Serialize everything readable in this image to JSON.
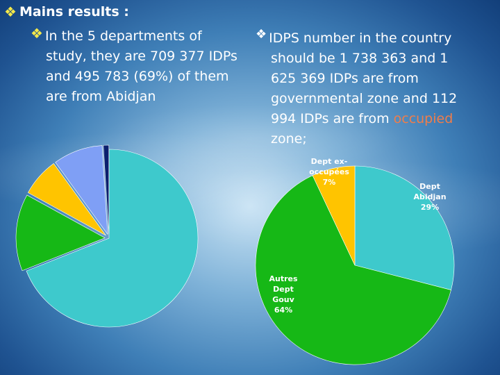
{
  "heading": "Mains results :",
  "left_text": {
    "line1": "In the 5 departments of",
    "line2": "study, they are 709 377 IDPs",
    "line3": "and  495 783 (69%) of them",
    "line4": "are from Abidjan"
  },
  "right_text": {
    "line1": "IDPS number in the country",
    "line2": "should be 1 738 363 and 1",
    "line3": "625 369 IDPs are from",
    "line4": "governmental zone and  112",
    "line5_a": "994 IDPs are from ",
    "line5_b": "occupied",
    "line6": "zone;"
  },
  "chart_data": [
    {
      "type": "pie",
      "labels_visible": false,
      "values": [
        69,
        14,
        7,
        9,
        1
      ],
      "colors": [
        "#3ec9cc",
        "#16b816",
        "#ffc400",
        "#7f9ff5",
        "#0b1f6e"
      ]
    },
    {
      "type": "pie",
      "slices": [
        {
          "label_lines": [
            "Dept",
            "Abidjan",
            "29%"
          ],
          "value": 29,
          "color": "#3ec9cc",
          "label_color": "#ffffff"
        },
        {
          "label_lines": [
            "Autres",
            "Dept",
            "Gouv",
            "64%"
          ],
          "value": 64,
          "color": "#16b816",
          "label_color": "#ffffff"
        },
        {
          "label_lines": [
            "Dept ex-",
            "occupées",
            "7%"
          ],
          "value": 7,
          "color": "#ffc400",
          "label_color": "#ffffff"
        }
      ]
    }
  ]
}
